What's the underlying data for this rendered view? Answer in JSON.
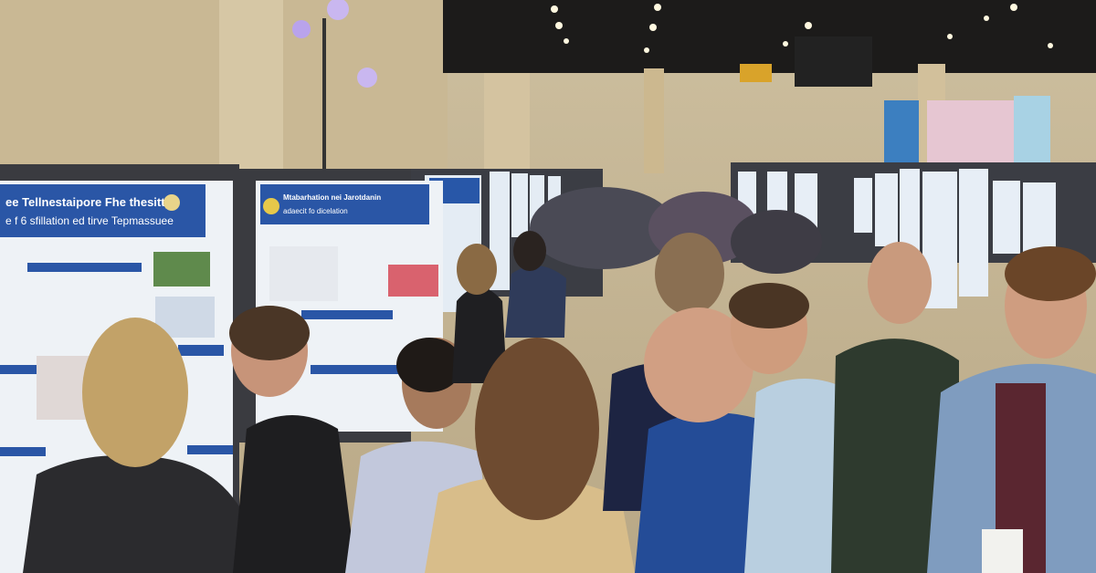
{
  "posters": [
    {
      "title_lines": [
        "ee Tellnestaipore Fhe thesitty",
        "e f 6 sfillation ed tirve Tepmassuee"
      ]
    },
    {
      "title_lines": [
        "Mtabarhation nei Jarotdanin",
        "adaecit fo dicelation"
      ]
    }
  ]
}
